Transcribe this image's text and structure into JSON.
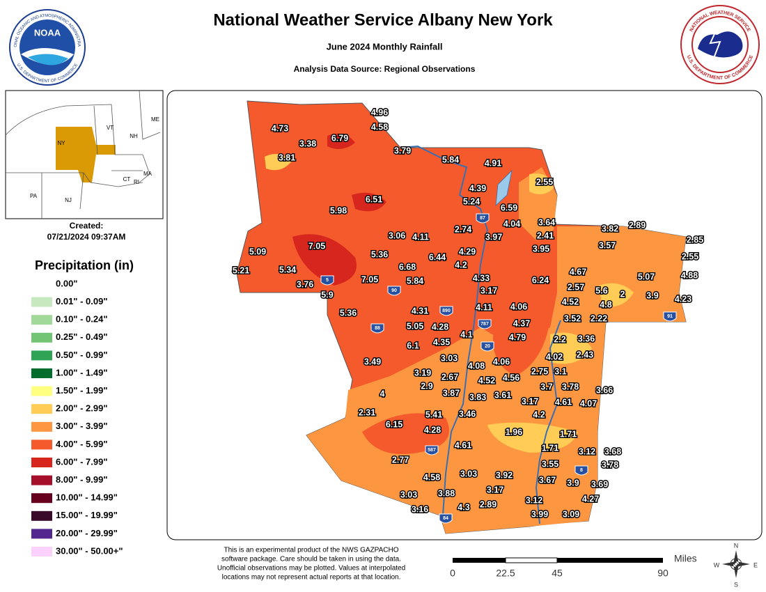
{
  "header": {
    "title": "National Weather Service Albany New York",
    "subtitle": "June 2024 Monthly Rainfall",
    "source": "Analysis Data Source: Regional Observations"
  },
  "logos": {
    "noaa": {
      "name": "NOAA",
      "ring_top": "NATIONAL OCEANIC AND ATMOSPHERIC ADMINISTRATION",
      "ring_bottom": "U.S. DEPARTMENT OF COMMERCE"
    },
    "nws": {
      "ring_top": "NATIONAL WEATHER SERVICE",
      "ring_bottom": "U.S. DEPARTMENT OF COMMERCE"
    }
  },
  "inset": {
    "labels": [
      "VT",
      "NH",
      "ME",
      "NY",
      "MA",
      "CT",
      "RI",
      "PA",
      "NJ"
    ]
  },
  "created": {
    "label": "Created:",
    "timestamp": "07/21/2024 09:37AM"
  },
  "legend": {
    "title": "Precipitation (in)",
    "items": [
      {
        "label": "0.00\"",
        "color": "#ffffff"
      },
      {
        "label": "0.01\" - 0.09\"",
        "color": "#c7e9c0"
      },
      {
        "label": "0.10\" - 0.24\"",
        "color": "#a1d99b"
      },
      {
        "label": "0.25\" - 0.49\"",
        "color": "#74c476"
      },
      {
        "label": "0.50\" - 0.99\"",
        "color": "#31a354"
      },
      {
        "label": "1.00\" - 1.49\"",
        "color": "#006d2c"
      },
      {
        "label": "1.50\" - 1.99\"",
        "color": "#ffff80"
      },
      {
        "label": "2.00\" - 2.99\"",
        "color": "#ffcc55"
      },
      {
        "label": "3.00\" - 3.99\"",
        "color": "#fd9640"
      },
      {
        "label": "4.00\" - 5.99\"",
        "color": "#f55a2c"
      },
      {
        "label": "6.00\" - 7.99\"",
        "color": "#d7261e"
      },
      {
        "label": "8.00\" - 9.99\"",
        "color": "#a50f29"
      },
      {
        "label": "10.00\" - 14.99\"",
        "color": "#67001f"
      },
      {
        "label": "15.00\" - 19.99\"",
        "color": "#3a0a2a"
      },
      {
        "label": "20.00\" - 29.99\"",
        "color": "#54278f"
      },
      {
        "label": "30.00\" - 50.00+\"",
        "color": "#fcd2fc"
      }
    ]
  },
  "map": {
    "stations": [
      "4.73",
      "3.38",
      "6.79",
      "4.96",
      "4.58",
      "3.81",
      "3.79",
      "5.84",
      "4.91",
      "2.55",
      "4.39",
      "5.24",
      "6.59",
      "6.51",
      "5.98",
      "4.04",
      "3.64",
      "3.82",
      "2.89",
      "2.74",
      "3.97",
      "2.41",
      "3.06",
      "4.11",
      "3.95",
      "3.57",
      "2.85",
      "5.09",
      "7.05",
      "5.36",
      "6.44",
      "4.29",
      "2.55",
      "5.21",
      "5.34",
      "6.68",
      "4.2",
      "4.67",
      "5.07",
      "4.88",
      "3.76",
      "7.05",
      "5.84",
      "4.33",
      "6.24",
      "2.57",
      "5.6",
      "5.9",
      "3.17",
      "2",
      "3.9",
      "4.23",
      "4.52",
      "4.8",
      "5.36",
      "4.31",
      "4.11",
      "4.06",
      "3.52",
      "2.22",
      "5.05",
      "4.28",
      "4.37",
      "4.1",
      "4.79",
      "2.2",
      "3.36",
      "4.35",
      "6.1",
      "2.43",
      "4.02",
      "3.49",
      "3.03",
      "4.06",
      "4.08",
      "2.75",
      "3.1",
      "3.19",
      "2.67",
      "4.52",
      "4.56",
      "2.9",
      "3.7",
      "3.78",
      "3.66",
      "4",
      "3.87",
      "3.83",
      "3.61",
      "3.17",
      "4.61",
      "4.07",
      "2.31",
      "5.41",
      "3.46",
      "4.2",
      "6.15",
      "4.28",
      "1.96",
      "1.71",
      "4.61",
      "1.71",
      "3.12",
      "3.68",
      "3.78",
      "3.55",
      "2.77",
      "3.03",
      "3.92",
      "4.58",
      "3.67",
      "3.9",
      "3.69",
      "3.88",
      "3.17",
      "4.27",
      "3.03",
      "3.12",
      "4.3",
      "2.89",
      "3.16",
      "3.99",
      "3.09"
    ],
    "interstates": [
      "87",
      "5",
      "90",
      "890",
      "787",
      "88",
      "20",
      "91",
      "587",
      "8",
      "84"
    ]
  },
  "scale": {
    "unit": "Miles",
    "ticks": [
      "0",
      "22.5",
      "45",
      "90"
    ]
  },
  "compass": [
    "N",
    "E",
    "S",
    "W"
  ],
  "disclaimer": [
    "This is an experimental product of the NWS GAZPACHO",
    "software package. Care should be taken in using the data.",
    "Unofficial observations may be plotted. Values at interpolated",
    "locations may not represent actual reports at that location."
  ]
}
